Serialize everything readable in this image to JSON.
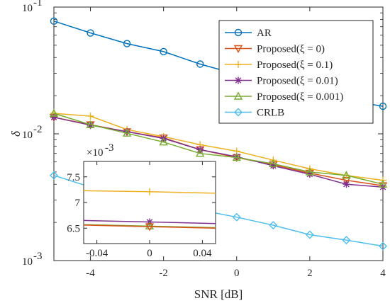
{
  "chart_data": [
    {
      "type": "line",
      "id": "main",
      "xlabel": "SNR [dB]",
      "ylabel": "δ",
      "xlim": [
        -5,
        4
      ],
      "ylim": [
        0.001,
        0.1
      ],
      "yscale": "log",
      "x_ticks": [
        -4,
        -2,
        0,
        2,
        4
      ],
      "x_tick_labels": [
        "-4",
        "-2",
        "0",
        "2",
        "4"
      ],
      "y_ticks": [
        0.001,
        0.01,
        0.1
      ],
      "y_tick_labels": [
        "10",
        "10",
        "10"
      ],
      "y_tick_exponents": [
        "-3",
        "-2",
        "-1"
      ],
      "grid": false,
      "legend_position": "top-right",
      "x": [
        -5,
        -4,
        -3,
        -2,
        -1,
        0,
        1,
        2,
        3,
        4
      ],
      "series": [
        {
          "name": "AR",
          "color": "#0072BD",
          "marker": "circle",
          "values": [
            0.0775,
            0.0625,
            0.0515,
            0.0445,
            0.0355,
            0.0295,
            0.0245,
            0.0205,
            0.0185,
            0.0165
          ]
        },
        {
          "name": "Proposed(ξ = 0)",
          "color": "#D95319",
          "marker": "triangle-down",
          "values": [
            0.0135,
            0.0118,
            0.0104,
            0.0093,
            0.0075,
            0.0065,
            0.0057,
            0.0049,
            0.0043,
            0.0039
          ]
        },
        {
          "name": "Proposed(ξ = 0.1)",
          "color": "#EDB120",
          "marker": "plus",
          "values": [
            0.0145,
            0.0138,
            0.0108,
            0.0095,
            0.0082,
            0.0073,
            0.0062,
            0.0053,
            0.0047,
            0.0043
          ]
        },
        {
          "name": "Proposed(ξ = 0.01)",
          "color": "#7E2F8E",
          "marker": "asterisk",
          "values": [
            0.0135,
            0.0117,
            0.0104,
            0.0092,
            0.0075,
            0.0066,
            0.0056,
            0.0048,
            0.004,
            0.0038
          ]
        },
        {
          "name": "Proposed(ξ = 0.001)",
          "color": "#77AC30",
          "marker": "triangle-up",
          "values": [
            0.0145,
            0.0118,
            0.0101,
            0.0086,
            0.007,
            0.0065,
            0.0058,
            0.005,
            0.0047,
            0.004
          ]
        },
        {
          "name": "CRLB",
          "color": "#4DBEEE",
          "marker": "diamond",
          "values": [
            0.0047,
            0.0038,
            0.0032,
            0.0028,
            0.0025,
            0.0022,
            0.0019,
            0.0016,
            0.00145,
            0.0013
          ]
        }
      ]
    },
    {
      "type": "line",
      "id": "inset",
      "xlim": [
        -0.05,
        0.05
      ],
      "ylim": [
        0.0062,
        0.0078
      ],
      "x_ticks": [
        -0.04,
        0,
        0.04
      ],
      "x_tick_labels": [
        "-0.04",
        "0",
        "0.04"
      ],
      "y_ticks": [
        0.0065,
        0.007,
        0.0075
      ],
      "y_tick_labels": [
        "6.5",
        "7",
        "7.5"
      ],
      "y_exponent_label": "×10",
      "y_exponent": "-3",
      "x": [
        -0.05,
        0,
        0.05
      ],
      "series": [
        {
          "name": "Proposed(ξ = 0.1)",
          "color": "#EDB120",
          "marker": "plus",
          "values": [
            0.00723,
            0.00721,
            0.00718
          ]
        },
        {
          "name": "Proposed(ξ = 0.01)",
          "color": "#7E2F8E",
          "marker": "asterisk",
          "values": [
            0.00665,
            0.00662,
            0.00659
          ]
        },
        {
          "name": "Proposed(ξ = 0.001)",
          "color": "#77AC30",
          "marker": "triangle-up",
          "values": [
            0.00657,
            0.00654,
            0.00651
          ]
        },
        {
          "name": "Proposed(ξ = 0)",
          "color": "#D95319",
          "marker": "triangle-down",
          "values": [
            0.00656,
            0.00653,
            0.0065
          ]
        }
      ]
    }
  ]
}
